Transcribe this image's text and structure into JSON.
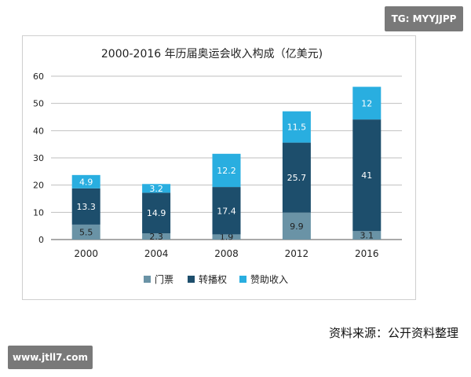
{
  "watermarks": {
    "top": "TG: MYYJJPP",
    "bottom": "www.jtll7.com"
  },
  "source": "资料来源：公开资料整理",
  "colors": {
    "ticket": "#6a93a6",
    "broadcast": "#1d4e6c",
    "sponsor": "#29aee0",
    "grid": "#bfbfbf",
    "axis": "#555555"
  },
  "chart_data": {
    "type": "bar",
    "stacked": true,
    "title": "2000-2016 年历届奥运会收入构成（亿美元)",
    "xlabel": "",
    "ylabel": "",
    "ylim": [
      0,
      60
    ],
    "yticks": [
      "0",
      "10",
      "20",
      "30",
      "40",
      "50",
      "60"
    ],
    "grid": true,
    "legend_position": "bottom",
    "categories": [
      "2000",
      "2004",
      "2008",
      "2012",
      "2016"
    ],
    "series": [
      {
        "name": "门票",
        "values": [
          5.5,
          2.3,
          1.9,
          9.9,
          3.1
        ],
        "labels": [
          "5.5",
          "2.3",
          "1.9",
          "9.9",
          "3.1"
        ]
      },
      {
        "name": "转播权",
        "values": [
          13.3,
          14.9,
          17.4,
          25.7,
          41
        ],
        "labels": [
          "13.3",
          "14.9",
          "17.4",
          "25.7",
          "41"
        ]
      },
      {
        "name": "赞助收入",
        "values": [
          4.9,
          3.2,
          12.2,
          11.5,
          12
        ],
        "labels": [
          "4.9",
          "3.2",
          "12.2",
          "11.5",
          "12"
        ]
      }
    ]
  }
}
